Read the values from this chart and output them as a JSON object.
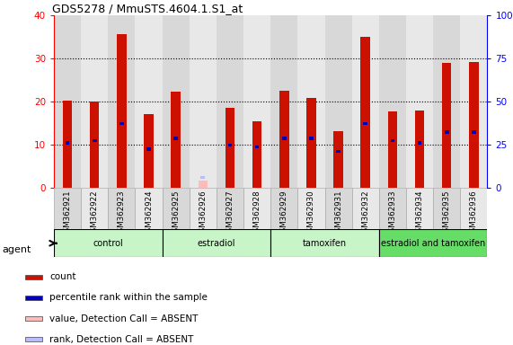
{
  "title": "GDS5278 / MmuSTS.4604.1.S1_at",
  "samples": [
    "GSM362921",
    "GSM362922",
    "GSM362923",
    "GSM362924",
    "GSM362925",
    "GSM362926",
    "GSM362927",
    "GSM362928",
    "GSM362929",
    "GSM362930",
    "GSM362931",
    "GSM362932",
    "GSM362933",
    "GSM362934",
    "GSM362935",
    "GSM362936"
  ],
  "count_values": [
    20.2,
    20.1,
    35.6,
    17.2,
    22.3,
    0.0,
    18.5,
    15.5,
    22.5,
    20.8,
    13.1,
    35.0,
    17.8,
    18.0,
    29.0,
    29.2
  ],
  "rank_values": [
    10.5,
    11.0,
    15.0,
    9.0,
    11.5,
    0.0,
    10.0,
    9.5,
    11.5,
    11.5,
    8.5,
    15.0,
    11.0,
    10.5,
    13.0,
    13.0
  ],
  "absent_count": [
    0,
    0,
    0,
    0,
    0,
    1.8,
    0,
    0,
    0,
    0,
    0,
    0,
    0,
    0,
    0,
    0
  ],
  "absent_rank": [
    0,
    0,
    0,
    0,
    0,
    2.5,
    0,
    0,
    0,
    0,
    0,
    0,
    0,
    0,
    0,
    0
  ],
  "groups": [
    {
      "label": "control",
      "start": 0,
      "end": 3,
      "color": "#c8f5c8"
    },
    {
      "label": "estradiol",
      "start": 4,
      "end": 7,
      "color": "#c8f5c8"
    },
    {
      "label": "tamoxifen",
      "start": 8,
      "end": 11,
      "color": "#c8f5c8"
    },
    {
      "label": "estradiol and tamoxifen",
      "start": 12,
      "end": 15,
      "color": "#66dd66"
    }
  ],
  "ylim_left": [
    0,
    40
  ],
  "ylim_right": [
    0,
    100
  ],
  "yticks_left": [
    0,
    10,
    20,
    30,
    40
  ],
  "yticks_right": [
    0,
    25,
    50,
    75,
    100
  ],
  "ytick_labels_right": [
    "0",
    "25",
    "50",
    "75",
    "100%"
  ],
  "bar_color": "#cc1100",
  "rank_color": "#0000bb",
  "absent_bar_color": "#ffbbbb",
  "absent_rank_color": "#bbbbff",
  "bar_width": 0.35,
  "agent_label": "agent",
  "bg_color_even": "#d8d8d8",
  "bg_color_odd": "#e8e8e8",
  "legend_items": [
    {
      "color": "#cc1100",
      "label": "count"
    },
    {
      "color": "#0000bb",
      "label": "percentile rank within the sample"
    },
    {
      "color": "#ffbbbb",
      "label": "value, Detection Call = ABSENT"
    },
    {
      "color": "#bbbbff",
      "label": "rank, Detection Call = ABSENT"
    }
  ]
}
